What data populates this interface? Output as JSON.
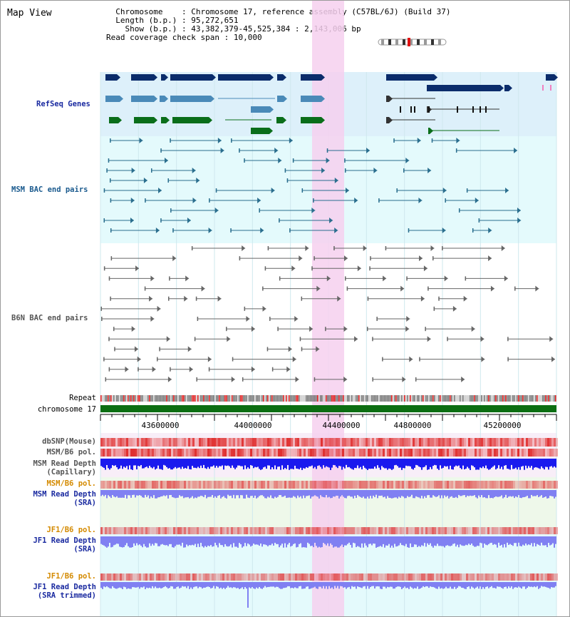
{
  "title": "Map View",
  "info": {
    "chromosome_key": "Chromosome",
    "chromosome_val": "Chromosome 17, reference assembly (C57BL/6J) (Build 37)",
    "length_key": "Length (b.p.)",
    "length_val": "95,272,651",
    "show_key": "Show (b.p.)",
    "show_val": "43,382,379-45,525,384 : 2,143,006 bp",
    "coverage_key": "Read coverage check span",
    "coverage_val": "10,000"
  },
  "tracks": {
    "refseq": "RefSeq Genes",
    "msm_bac": "MSM BAC end pairs",
    "b6n_bac": "B6N BAC end pairs",
    "repeat": "Repeat",
    "chromosome": "chromosome 17",
    "dbsnp": "dbSNP(Mouse)",
    "msm_b6_pol": "MSM/B6 pol.",
    "msm_depth_cap_1": "MSM Read Depth",
    "msm_depth_cap_2": "(Capillary)",
    "msm_b6_pol_2": "MSM/B6 pol.",
    "msm_depth_sra_1": "MSM Read Depth",
    "msm_depth_sra_2": "(SRA)",
    "jf1_b6_pol": "JF1/B6 pol.",
    "jf1_depth_sra_1": "JF1 Read Depth",
    "jf1_depth_sra_2": "(SRA)",
    "jf1_b6_pol_2": "JF1/B6 pol.",
    "jf1_depth_trim_1": "JF1 Read Depth",
    "jf1_depth_trim_2": "(SRA trimmed)"
  },
  "axis": {
    "ticks": [
      "43600000",
      "44000000",
      "44400000",
      "44800000",
      "45200000"
    ]
  },
  "colors": {
    "refseq_dark": "#0b2c6b",
    "refseq_light": "#4a8ab8",
    "refseq_green": "#0a6e1a",
    "bac_teal": "#2a6e8e",
    "bac_gray": "#666666",
    "highlight": "#f6d0ef",
    "chromosome_bar": "#0c6e12",
    "depth_dark_blue": "#1a1aee",
    "depth_light_blue": "#8080f2",
    "label_blue": "#1a2aa0",
    "label_orange": "#d48a00"
  }
}
